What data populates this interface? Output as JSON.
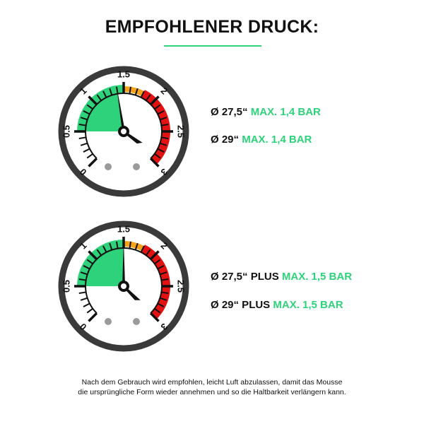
{
  "title": "EMPFOHLENER DRUCK:",
  "colors": {
    "accent": "#2ed27a",
    "orange": "#f5a31a",
    "red": "#e31212",
    "rim": "#3a3a3a"
  },
  "gauges": [
    {
      "scale_labels": [
        "0",
        "0.5",
        "1",
        "1.5",
        "2",
        "2.5",
        "3"
      ],
      "needle_value": 1.4,
      "specs": [
        {
          "size": "Ø 27,5“",
          "value": "MAX. 1,4 BAR"
        },
        {
          "size": "Ø 29“",
          "value": "MAX. 1,4 BAR"
        }
      ]
    },
    {
      "scale_labels": [
        "0",
        "0.5",
        "1",
        "1.5",
        "2",
        "2.5",
        "3"
      ],
      "needle_value": 1.5,
      "specs": [
        {
          "size": "Ø 27,5“ PLUS",
          "value": "MAX. 1,5 BAR"
        },
        {
          "size": "Ø 29“ PLUS",
          "value": "MAX. 1,5 BAR"
        }
      ]
    }
  ],
  "note": {
    "line1": "Nach dem Gebrauch wird empfohlen, leicht Luft abzulassen, damit das Mousse",
    "line2": "die ursprüngliche Form wieder annehmen und so die Haltbarkeit verlängern kann."
  }
}
